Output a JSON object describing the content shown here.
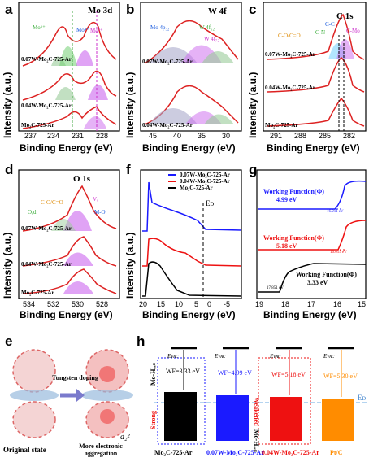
{
  "panels": {
    "a": {
      "label": "a",
      "title": "Mo 3d",
      "ylabel": "Intensity (a.u.)",
      "xlabel": "Binding Energy (eV)",
      "ticks": [
        "237",
        "234",
        "231",
        "228"
      ],
      "samples": [
        "0.07W-Mo₂C-725-Ar",
        "0.04W-Mo₂C-725-Ar",
        "Mo₂C-725-Ar"
      ],
      "species": [
        "Mo⁶⁺",
        "Mo⁴⁺",
        "Mo³⁺",
        "Mo²⁺"
      ]
    },
    "b": {
      "label": "b",
      "title": "W 4f",
      "ylabel": "Intensity (a.u.)",
      "xlabel": "Binding Energy (eV)",
      "ticks": [
        "45",
        "40",
        "35",
        "30"
      ],
      "samples": [
        "0.07W-Mo₂C-725-Ar",
        "0.04W-Mo₂C-725-Ar"
      ],
      "species": [
        "Mo 4p₃₂",
        "W 4f₅₂",
        "W 4f₇₂"
      ]
    },
    "c": {
      "label": "c",
      "title": "C 1s",
      "ylabel": "Intensity (a.u.)",
      "xlabel": "Binding Energy (eV)",
      "ticks": [
        "291",
        "288",
        "285",
        "282"
      ],
      "samples": [
        "0.07W-Mo₂C-725-Ar",
        "0.04W-Mo₂C-725-Ar",
        "Mo₂C-725-Ar"
      ],
      "species": [
        "C-O/C=O",
        "C-N",
        "C-C",
        "C-Mo"
      ]
    },
    "d": {
      "label": "d",
      "title": "O 1s",
      "ylabel": "Intensity (a.u.)",
      "xlabel": "Binding Energy (eV)",
      "ticks": [
        "534",
        "532",
        "530",
        "528"
      ],
      "samples": [
        "0.07W-Mo₂C-725-Ar",
        "0.04W-Mo₂C-725-Ar",
        "Mo₂C-725-Ar"
      ],
      "species": [
        "C-O/C=O",
        "Oₐd",
        "Vₒ",
        "M-O"
      ]
    },
    "f": {
      "label": "f",
      "ylabel": "Intensity (a.u.)",
      "xlabel": "Binding Energy (eV)",
      "ticks": [
        "20",
        "15",
        "10",
        "5",
        "0",
        "-5"
      ],
      "ef": "Eᴅ",
      "legend": [
        "0.07W-Mo₂C-725-Ar",
        "0.04W-Mo₂C-725-Ar",
        "Mo₂C-725-Ar"
      ]
    },
    "g": {
      "label": "g",
      "xlabel": "Binding Energy (eV)",
      "ticks": [
        "19",
        "18",
        "17",
        "16",
        "15"
      ],
      "wf": [
        {
          "label": "Working Function(Φ)",
          "value": "4.99 eV",
          "cut": "16.211 eV"
        },
        {
          "label": "Working Function(Φ)",
          "value": "5.18 eV",
          "cut": "16.019 eV"
        },
        {
          "label": "Working Function(Φ)",
          "value": "3.33 eV",
          "cut": "17.851 eV"
        }
      ]
    },
    "e": {
      "label": "e",
      "arrow": "Tungsten doping",
      "left": "Original state",
      "right": "More electronic aggregation",
      "orbital": "d₂²"
    },
    "h": {
      "label": "h",
      "ev": "Eᴠᴀᴄ",
      "ef": "Eᴅ",
      "strong": "Strong",
      "weakened": "Weakened",
      "adsA": "Mo-Hₐₑₛ",
      "adsB": "Mo-Hₐₑₛ",
      "bars": [
        {
          "wf": "WF=3.33 eV",
          "name": "Mo₂C-725-Ar",
          "color": "#000000"
        },
        {
          "wf": "WF=4.99 eV",
          "name": "0.07W-Mo₂C-725-Ar",
          "color": "#1a1aff"
        },
        {
          "wf": "WF=5.18 eV",
          "name": "0.04W-Mo₂C-725-Ar",
          "color": "#ff1a1a"
        },
        {
          "wf": "WF=5.30 eV",
          "name": "Pt/C",
          "color": "#ff8c00"
        }
      ]
    }
  }
}
